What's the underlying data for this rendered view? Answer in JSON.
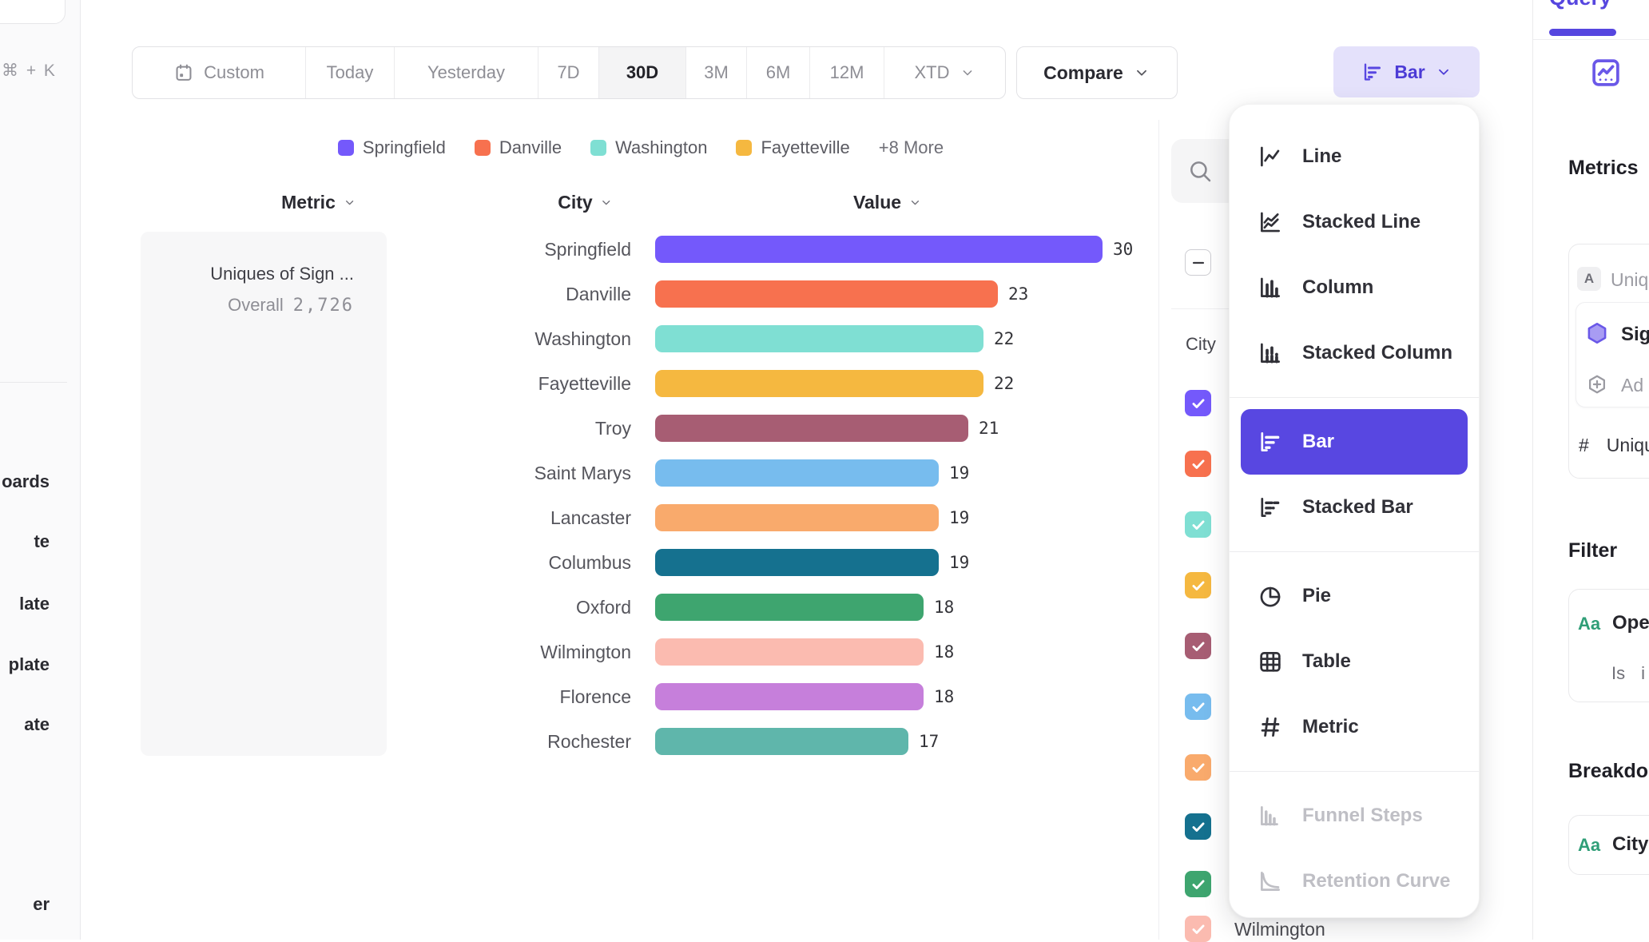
{
  "colors": {
    "accent": "#5847e1",
    "accent_soft": "#e4e1fb",
    "accent_text": "#4c3bd6",
    "green_label": "#2f9e77"
  },
  "left_rail": {
    "shortcut": "⌘ + K",
    "items": [
      "oards",
      "te",
      "late",
      "plate",
      "ate",
      "er"
    ]
  },
  "toolbar": {
    "date_ranges": [
      "Custom",
      "Today",
      "Yesterday",
      "7D",
      "30D",
      "3M",
      "6M",
      "12M",
      "XTD"
    ],
    "selected_range": "30D",
    "compare_label": "Compare",
    "chart_type_label": "Bar"
  },
  "legend": {
    "items": [
      {
        "label": "Springfield",
        "color": "#7459fb"
      },
      {
        "label": "Danville",
        "color": "#f7714f"
      },
      {
        "label": "Washington",
        "color": "#7fdfd3"
      },
      {
        "label": "Fayetteville",
        "color": "#f5b840"
      }
    ],
    "more_label": "+8 More"
  },
  "table": {
    "columns": [
      "Metric",
      "City",
      "Value"
    ],
    "metric_card": {
      "title": "Uniques of Sign ...",
      "overall_label": "Overall",
      "overall_value": "2,726"
    }
  },
  "chart_data": {
    "type": "bar",
    "orientation": "horizontal",
    "categories": [
      "Springfield",
      "Danville",
      "Washington",
      "Fayetteville",
      "Troy",
      "Saint Marys",
      "Lancaster",
      "Columbus",
      "Oxford",
      "Wilmington",
      "Florence",
      "Rochester"
    ],
    "values": [
      30,
      23,
      22,
      22,
      21,
      19,
      19,
      19,
      18,
      18,
      18,
      17
    ],
    "colors": [
      "#7459fb",
      "#f7714f",
      "#7fdfd3",
      "#f5b840",
      "#a75d73",
      "#77bcee",
      "#f9aa6c",
      "#15718f",
      "#3ea56f",
      "#fbbbb0",
      "#c67fdb",
      "#5fb6ab"
    ],
    "xlim": [
      0,
      30
    ],
    "value_labels_shown": true
  },
  "breakdown_panel": {
    "column_label": "City",
    "select_all_state": "indeterminate",
    "checkbox_colors": [
      "#7459fb",
      "#f7714f",
      "#7fdfd3",
      "#f5b840",
      "#a75d73",
      "#77bcee",
      "#f9aa6c",
      "#15718f",
      "#3ea56f",
      "#fbbbb0"
    ],
    "partial_row_label": "Wilmington"
  },
  "chart_type_menu": {
    "groups": [
      [
        {
          "label": "Line",
          "icon": "line"
        },
        {
          "label": "Stacked Line",
          "icon": "stacked-line"
        },
        {
          "label": "Column",
          "icon": "column"
        },
        {
          "label": "Stacked Column",
          "icon": "stacked-column"
        }
      ],
      [
        {
          "label": "Bar",
          "icon": "bar",
          "state": "selected"
        },
        {
          "label": "Stacked Bar",
          "icon": "stacked-bar"
        }
      ],
      [
        {
          "label": "Pie",
          "icon": "pie"
        },
        {
          "label": "Table",
          "icon": "table"
        },
        {
          "label": "Metric",
          "icon": "metric"
        }
      ],
      [
        {
          "label": "Funnel Steps",
          "icon": "funnel",
          "state": "disabled"
        },
        {
          "label": "Retention Curve",
          "icon": "retention",
          "state": "disabled"
        }
      ]
    ]
  },
  "query_panel": {
    "tab": "Query",
    "metrics_heading": "Metrics",
    "metric_badge": "A",
    "metric_text": "Uniq",
    "event_text": "Sig",
    "add_text": "Ad",
    "hash_prefix": "#",
    "uniques_text": "Uniqu",
    "filter_heading": "Filter",
    "aa_label": "Aa",
    "filter_prop": "Ope",
    "filter_op": "Is",
    "filter_val": "i",
    "breakdown_heading": "Breakdo",
    "breakdown_prop": "City"
  }
}
